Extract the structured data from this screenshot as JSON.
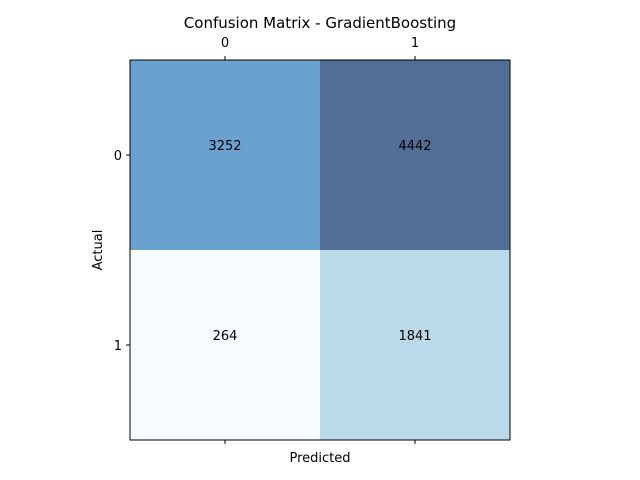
{
  "chart_data": {
    "type": "heatmap",
    "title": "Confusion Matrix - GradientBoosting",
    "xlabel": "Predicted",
    "ylabel": "Actual",
    "x_tick_labels": [
      "0",
      "1"
    ],
    "y_tick_labels": [
      "0",
      "1"
    ],
    "x_ticks_position": "top-and-bottom",
    "matrix": [
      [
        3252,
        4442
      ],
      [
        264,
        1841
      ]
    ],
    "colormap": "Blues",
    "grid": false,
    "legend": "none"
  }
}
